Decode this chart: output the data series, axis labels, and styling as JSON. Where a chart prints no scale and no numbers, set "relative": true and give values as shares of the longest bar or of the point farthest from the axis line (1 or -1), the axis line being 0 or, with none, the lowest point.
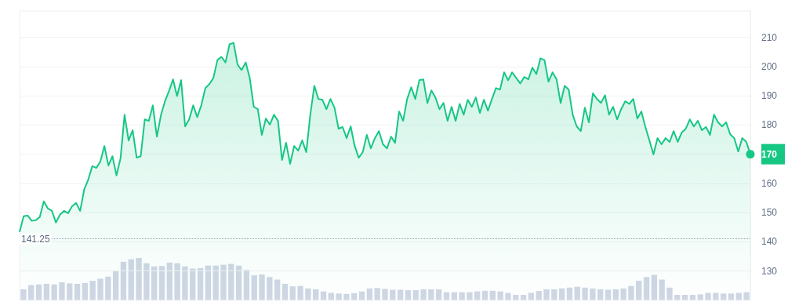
{
  "chart_data": [
    {
      "type": "area",
      "categories": [
        null,
        null,
        null,
        null,
        null,
        null,
        null,
        null,
        null,
        null,
        null,
        null,
        null,
        null,
        null,
        null,
        null,
        null,
        null,
        null,
        null,
        null,
        null,
        null,
        null,
        null,
        null,
        null,
        null,
        null,
        null,
        null,
        null,
        null,
        null,
        null,
        null,
        null,
        null,
        null,
        null,
        null,
        null,
        null,
        null,
        null,
        null,
        null,
        null,
        null,
        null,
        null,
        null,
        null,
        null,
        null,
        null,
        null,
        null,
        null,
        null,
        null,
        null,
        null,
        null,
        null,
        null,
        null,
        null,
        null,
        null,
        null,
        null,
        null,
        null,
        null,
        null,
        null,
        null,
        null,
        null,
        null,
        null,
        null,
        null,
        null,
        null,
        null,
        null,
        null,
        null,
        null,
        null,
        null,
        null,
        null,
        null,
        null,
        null,
        null,
        null,
        null,
        null,
        null,
        null,
        null,
        null,
        null,
        null,
        null,
        null,
        null,
        null,
        null,
        null,
        null,
        null,
        null,
        null,
        null,
        null,
        null,
        null,
        null,
        null,
        null,
        null,
        null,
        null,
        null,
        null,
        null,
        null,
        null,
        null,
        null,
        null,
        null,
        null,
        null,
        null,
        null,
        null,
        null,
        null,
        null,
        null,
        null,
        null,
        null,
        null,
        null,
        null,
        null,
        null,
        null,
        null,
        null,
        null,
        null,
        null,
        null,
        null,
        null,
        null,
        null,
        null,
        null,
        null,
        null,
        null,
        null,
        null,
        null,
        null,
        null,
        null,
        null,
        null,
        null,
        null,
        null
      ],
      "series": [
        {
          "color": "#16c784",
          "values": [
            143.4,
            148.8,
            149,
            147.2,
            147.4,
            148.5,
            153.9,
            151.4,
            150.6,
            146.6,
            149.3,
            150.6,
            149.8,
            152.2,
            153.3,
            150.6,
            157.9,
            161.3,
            165.9,
            165.3,
            167.5,
            172.8,
            166.1,
            169.3,
            162.7,
            168.6,
            183.5,
            174.7,
            178.2,
            168.8,
            169.3,
            181.9,
            181.4,
            186.7,
            176,
            183.3,
            188.1,
            191.6,
            195.6,
            189.9,
            195.3,
            179.5,
            181.9,
            186.7,
            182.7,
            186.7,
            192.6,
            194,
            196.1,
            202.2,
            203.3,
            201.4,
            207.6,
            208.1,
            200.6,
            198.8,
            201.4,
            196.1,
            186.2,
            185.4,
            176.6,
            182.2,
            180.1,
            183.5,
            181.4,
            168,
            173.9,
            166.7,
            172.8,
            171.2,
            174.7,
            170.7,
            183.5,
            193.4,
            188.9,
            188.6,
            185.4,
            188.9,
            185.9,
            178.7,
            179.3,
            175.5,
            179.5,
            172.8,
            168.8,
            170.7,
            176.6,
            172,
            175.5,
            177.9,
            173.4,
            172,
            176,
            173.9,
            184.6,
            181.4,
            188.9,
            192.9,
            188.9,
            195.3,
            195.6,
            187.5,
            191.8,
            189.4,
            185.4,
            187.5,
            181.4,
            186.2,
            181.4,
            187.2,
            183.5,
            188.6,
            186.2,
            189.4,
            184.1,
            188.6,
            184.9,
            188.9,
            192.6,
            192.1,
            198,
            195.3,
            198,
            196.1,
            194.2,
            196.4,
            195.6,
            199.6,
            197.4,
            202.8,
            202.2,
            194.8,
            198,
            195.6,
            187.5,
            193.4,
            192.1,
            183.5,
            179.5,
            177.9,
            185.9,
            180.9,
            190.8,
            188.9,
            187.5,
            190.2,
            183.5,
            186.2,
            181.9,
            185.4,
            188.1,
            187.2,
            188.9,
            182.2,
            184.6,
            179.3,
            174.7,
            169.9,
            175.5,
            173.4,
            175.5,
            174.2,
            177.9,
            174.2,
            177.4,
            178.7,
            181.9,
            179.5,
            181.4,
            178.2,
            179.3,
            176.6,
            183.5,
            180.9,
            179.5,
            180.9,
            176.8,
            175.5,
            170.9,
            175.5,
            174.2,
            170
          ]
        }
      ],
      "ylim": [
        120,
        219
      ],
      "yticks": [
        130,
        140,
        150,
        160,
        170,
        180,
        190,
        200,
        210
      ],
      "grid": "y",
      "ref_lines": [
        {
          "axis": "y",
          "value": 141.25,
          "label": "141.25",
          "color": "#9aa1ad",
          "line_style": "dotted"
        }
      ]
    },
    {
      "type": "bar",
      "relative": true,
      "color": "#cfd6e4",
      "categories": [
        null,
        null,
        null,
        null,
        null,
        null,
        null,
        null,
        null,
        null,
        null,
        null,
        null,
        null,
        null,
        null,
        null,
        null,
        null,
        null,
        null,
        null,
        null,
        null,
        null,
        null,
        null,
        null,
        null,
        null,
        null,
        null,
        null,
        null,
        null,
        null,
        null,
        null,
        null,
        null,
        null,
        null,
        null,
        null,
        null,
        null,
        null,
        null,
        null,
        null,
        null,
        null,
        null,
        null,
        null,
        null,
        null,
        null,
        null,
        null,
        null,
        null,
        null,
        null,
        null,
        null,
        null,
        null,
        null,
        null,
        null,
        null,
        null,
        null,
        null,
        null,
        null,
        null,
        null,
        null,
        null,
        null,
        null,
        null,
        null,
        null,
        null,
        null,
        null,
        null,
        null,
        null,
        null,
        null,
        null
      ],
      "values": [
        0.26,
        0.36,
        0.375,
        0.39,
        0.375,
        0.425,
        0.4,
        0.39,
        0.41,
        0.46,
        0.51,
        0.56,
        0.69,
        0.91,
        0.97,
        1,
        0.875,
        0.8,
        0.81,
        0.89,
        0.875,
        0.8,
        0.75,
        0.76,
        0.82,
        0.82,
        0.84,
        0.86,
        0.82,
        0.72,
        0.59,
        0.61,
        0.55,
        0.49,
        0.39,
        0.33,
        0.34,
        0.28,
        0.26,
        0.21,
        0.175,
        0.16,
        0.15,
        0.17,
        0.21,
        0.28,
        0.29,
        0.27,
        0.25,
        0.25,
        0.24,
        0.24,
        0.26,
        0.26,
        0.26,
        0.19,
        0.19,
        0.19,
        0.19,
        0.21,
        0.225,
        0.225,
        0.21,
        0.175,
        0.13,
        0.13,
        0.175,
        0.22,
        0.26,
        0.26,
        0.28,
        0.3,
        0.32,
        0.3,
        0.28,
        0.26,
        0.25,
        0.26,
        0.28,
        0.34,
        0.46,
        0.55,
        0.6,
        0.49,
        0.3,
        0.13,
        0.13,
        0.13,
        0.14,
        0.175,
        0.175,
        0.16,
        0.16,
        0.175,
        0.19
      ]
    }
  ]
}
